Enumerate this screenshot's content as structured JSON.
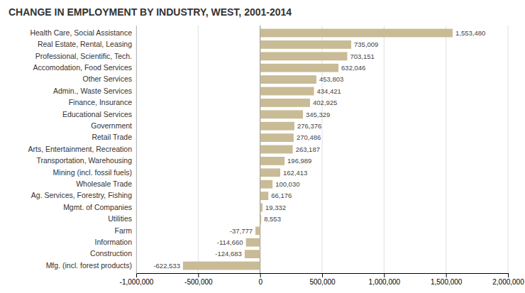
{
  "chart_data": {
    "type": "bar",
    "orientation": "horizontal",
    "title": "CHANGE IN EMPLOYMENT BY INDUSTRY, WEST, 2001-2014",
    "categories": [
      "Mfg. (incl. forest products)",
      "Construction",
      "Information",
      "Farm",
      "Utilities",
      "Mgmt. of Companies",
      "Ag. Services, Forestry, Fishing",
      "Wholesale Trade",
      "Mining (incl. fossil fuels)",
      "Transportation, Warehousing",
      "Arts, Entertainment, Recreation",
      "Retail Trade",
      "Government",
      "Educational Services",
      "Finance, Insurance",
      "Admin., Waste Services",
      "Other Services",
      "Accomodation, Food Services",
      "Professional, Scientific, Tech.",
      "Real Estate, Rental, Leasing",
      "Health Care, Social Assistance"
    ],
    "values": [
      -622533,
      -124683,
      -114660,
      -37777,
      8553,
      19332,
      66176,
      100030,
      162413,
      196989,
      263187,
      270486,
      276376,
      345329,
      402925,
      434421,
      453803,
      632046,
      703151,
      735009,
      1553480
    ],
    "value_labels": [
      "-622,533",
      "-124,683",
      "-114,660",
      "-37,777",
      "8,553",
      "19,332",
      "66,176",
      "100,030",
      "162,413",
      "196,989",
      "263,187",
      "270,486",
      "276,376",
      "345,329",
      "402,925",
      "434,421",
      "453,803",
      "632,046",
      "703,151",
      "735,009",
      "1,553,480"
    ],
    "data_labels": true,
    "color": "#c8bb96",
    "xlim": [
      -1000000,
      2000000
    ],
    "xticks": [
      {
        "value": -1000000,
        "label": "-1,000,000"
      },
      {
        "value": -500000,
        "label": "-500,000"
      },
      0,
      {
        "value": 500000,
        "label": "500,000"
      },
      {
        "value": 1000000,
        "label": "1,000,000"
      },
      {
        "value": 1500000,
        "label": "1,500,000"
      },
      {
        "value": 2000000,
        "label": "2,000,000"
      }
    ],
    "grid": true
  }
}
